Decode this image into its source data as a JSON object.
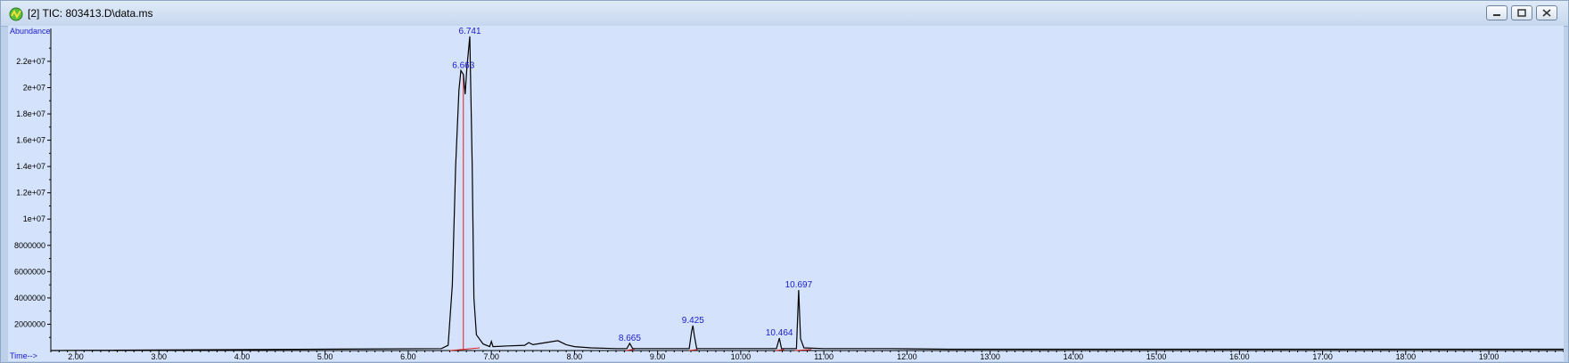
{
  "window": {
    "title": "[2] TIC: 803413.D\\data.ms",
    "controls": [
      "minimize",
      "restore",
      "close"
    ]
  },
  "chart_data": {
    "type": "line",
    "xlabel": "Time-->",
    "ylabel": "Abundance",
    "xlim": [
      1.7,
      19.9
    ],
    "ylim": [
      0,
      24500000
    ],
    "x_ticks": [
      "2.00",
      "3.00",
      "4.00",
      "5.00",
      "6.00",
      "7.00",
      "8.00",
      "9.00",
      "10.00",
      "11.00",
      "12.00",
      "13.00",
      "14.00",
      "15.00",
      "16.00",
      "17.00",
      "18.00",
      "19.00"
    ],
    "y_ticks": [
      "2000000",
      "4000000",
      "6000000",
      "8000000",
      "1e+07",
      "1.2e+07",
      "1.4e+07",
      "1.6e+07",
      "1.8e+07",
      "2e+07",
      "2.2e+07"
    ],
    "y_tick_values": [
      2000000,
      4000000,
      6000000,
      8000000,
      10000000,
      12000000,
      14000000,
      16000000,
      18000000,
      20000000,
      22000000
    ],
    "series": [
      {
        "color": "#000000",
        "points": [
          [
            1.7,
            0
          ],
          [
            6.4,
            150000
          ],
          [
            6.48,
            400000
          ],
          [
            6.53,
            5000000
          ],
          [
            6.57,
            14000000
          ],
          [
            6.61,
            19800000
          ],
          [
            6.633,
            21300000
          ],
          [
            6.663,
            21000000
          ],
          [
            6.685,
            19500000
          ],
          [
            6.705,
            21500000
          ],
          [
            6.741,
            23900000
          ],
          [
            6.77,
            14000000
          ],
          [
            6.79,
            4000000
          ],
          [
            6.82,
            1200000
          ],
          [
            6.9,
            500000
          ],
          [
            6.98,
            300000
          ],
          [
            7.0,
            700000
          ],
          [
            7.02,
            300000
          ],
          [
            7.2,
            350000
          ],
          [
            7.4,
            400000
          ],
          [
            7.45,
            600000
          ],
          [
            7.5,
            450000
          ],
          [
            7.6,
            550000
          ],
          [
            7.7,
            650000
          ],
          [
            7.8,
            750000
          ],
          [
            7.9,
            450000
          ],
          [
            8.0,
            300000
          ],
          [
            8.2,
            200000
          ],
          [
            8.5,
            150000
          ],
          [
            8.63,
            150000
          ],
          [
            8.665,
            550000
          ],
          [
            8.7,
            150000
          ],
          [
            9.38,
            150000
          ],
          [
            9.41,
            1500000
          ],
          [
            9.425,
            1900000
          ],
          [
            9.44,
            1200000
          ],
          [
            9.47,
            150000
          ],
          [
            10.43,
            150000
          ],
          [
            10.464,
            950000
          ],
          [
            10.49,
            150000
          ],
          [
            10.67,
            150000
          ],
          [
            10.697,
            4600000
          ],
          [
            10.72,
            900000
          ],
          [
            10.76,
            200000
          ],
          [
            11.0,
            150000
          ],
          [
            11.8,
            150000
          ],
          [
            12.5,
            100000
          ],
          [
            19.9,
            100000
          ]
        ]
      }
    ],
    "peak_labels": [
      {
        "text": "6.741",
        "x": 6.741,
        "y": 23900000
      },
      {
        "text": "6.663",
        "x": 6.663,
        "y": 21300000
      },
      {
        "text": "8.665",
        "x": 8.665,
        "y": 550000
      },
      {
        "text": "9.425",
        "x": 9.425,
        "y": 1900000
      },
      {
        "text": "10.464",
        "x": 10.464,
        "y": 950000
      },
      {
        "text": "10.697",
        "x": 10.697,
        "y": 4600000
      }
    ],
    "integration_marks": [
      {
        "x1": 6.5,
        "y1": 0,
        "x2": 6.86,
        "y2": 200000
      },
      {
        "x1": 6.663,
        "y1": 0,
        "x2": 6.663,
        "y2": 21000000
      },
      {
        "x1": 8.62,
        "y1": 0,
        "x2": 8.72,
        "y2": 100000
      },
      {
        "x1": 9.38,
        "y1": 0,
        "x2": 9.48,
        "y2": 80000
      },
      {
        "x1": 10.42,
        "y1": 0,
        "x2": 10.52,
        "y2": 80000
      },
      {
        "x1": 10.65,
        "y1": 0,
        "x2": 10.85,
        "y2": 80000
      }
    ],
    "grid": false,
    "background": "#d4e3fb",
    "line_color": "#000000",
    "label_color": "#1a1acc",
    "integration_color": "#e02020"
  }
}
